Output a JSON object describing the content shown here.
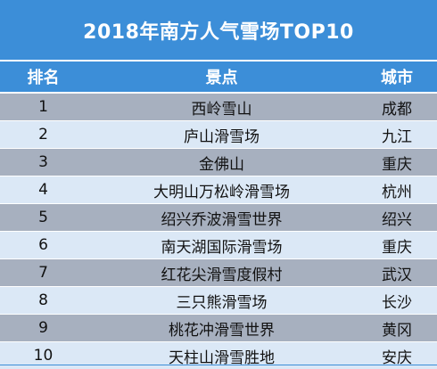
{
  "title": "2018年南方人气雪场TOP10",
  "headers": {
    "rank": "排名",
    "spot": "景点",
    "city": "城市"
  },
  "rows": [
    {
      "rank": "1",
      "spot": "西岭雪山",
      "city": "成都"
    },
    {
      "rank": "2",
      "spot": "庐山滑雪场",
      "city": "九江"
    },
    {
      "rank": "3",
      "spot": "金佛山",
      "city": "重庆"
    },
    {
      "rank": "4",
      "spot": "大明山万松岭滑雪场",
      "city": "杭州"
    },
    {
      "rank": "5",
      "spot": "绍兴乔波滑雪世界",
      "city": "绍兴"
    },
    {
      "rank": "6",
      "spot": "南天湖国际滑雪场",
      "city": "重庆"
    },
    {
      "rank": "7",
      "spot": "红花尖滑雪度假村",
      "city": "武汉"
    },
    {
      "rank": "8",
      "spot": "三只熊滑雪场",
      "city": "长沙"
    },
    {
      "rank": "9",
      "spot": "桃花冲滑雪世界",
      "city": "黄冈"
    },
    {
      "rank": "10",
      "spot": "天柱山滑雪胜地",
      "city": "安庆"
    }
  ],
  "colors": {
    "header_bg": "#3c8ed8",
    "row_odd": "#a7b0bf",
    "row_even": "#dbe8f6"
  }
}
